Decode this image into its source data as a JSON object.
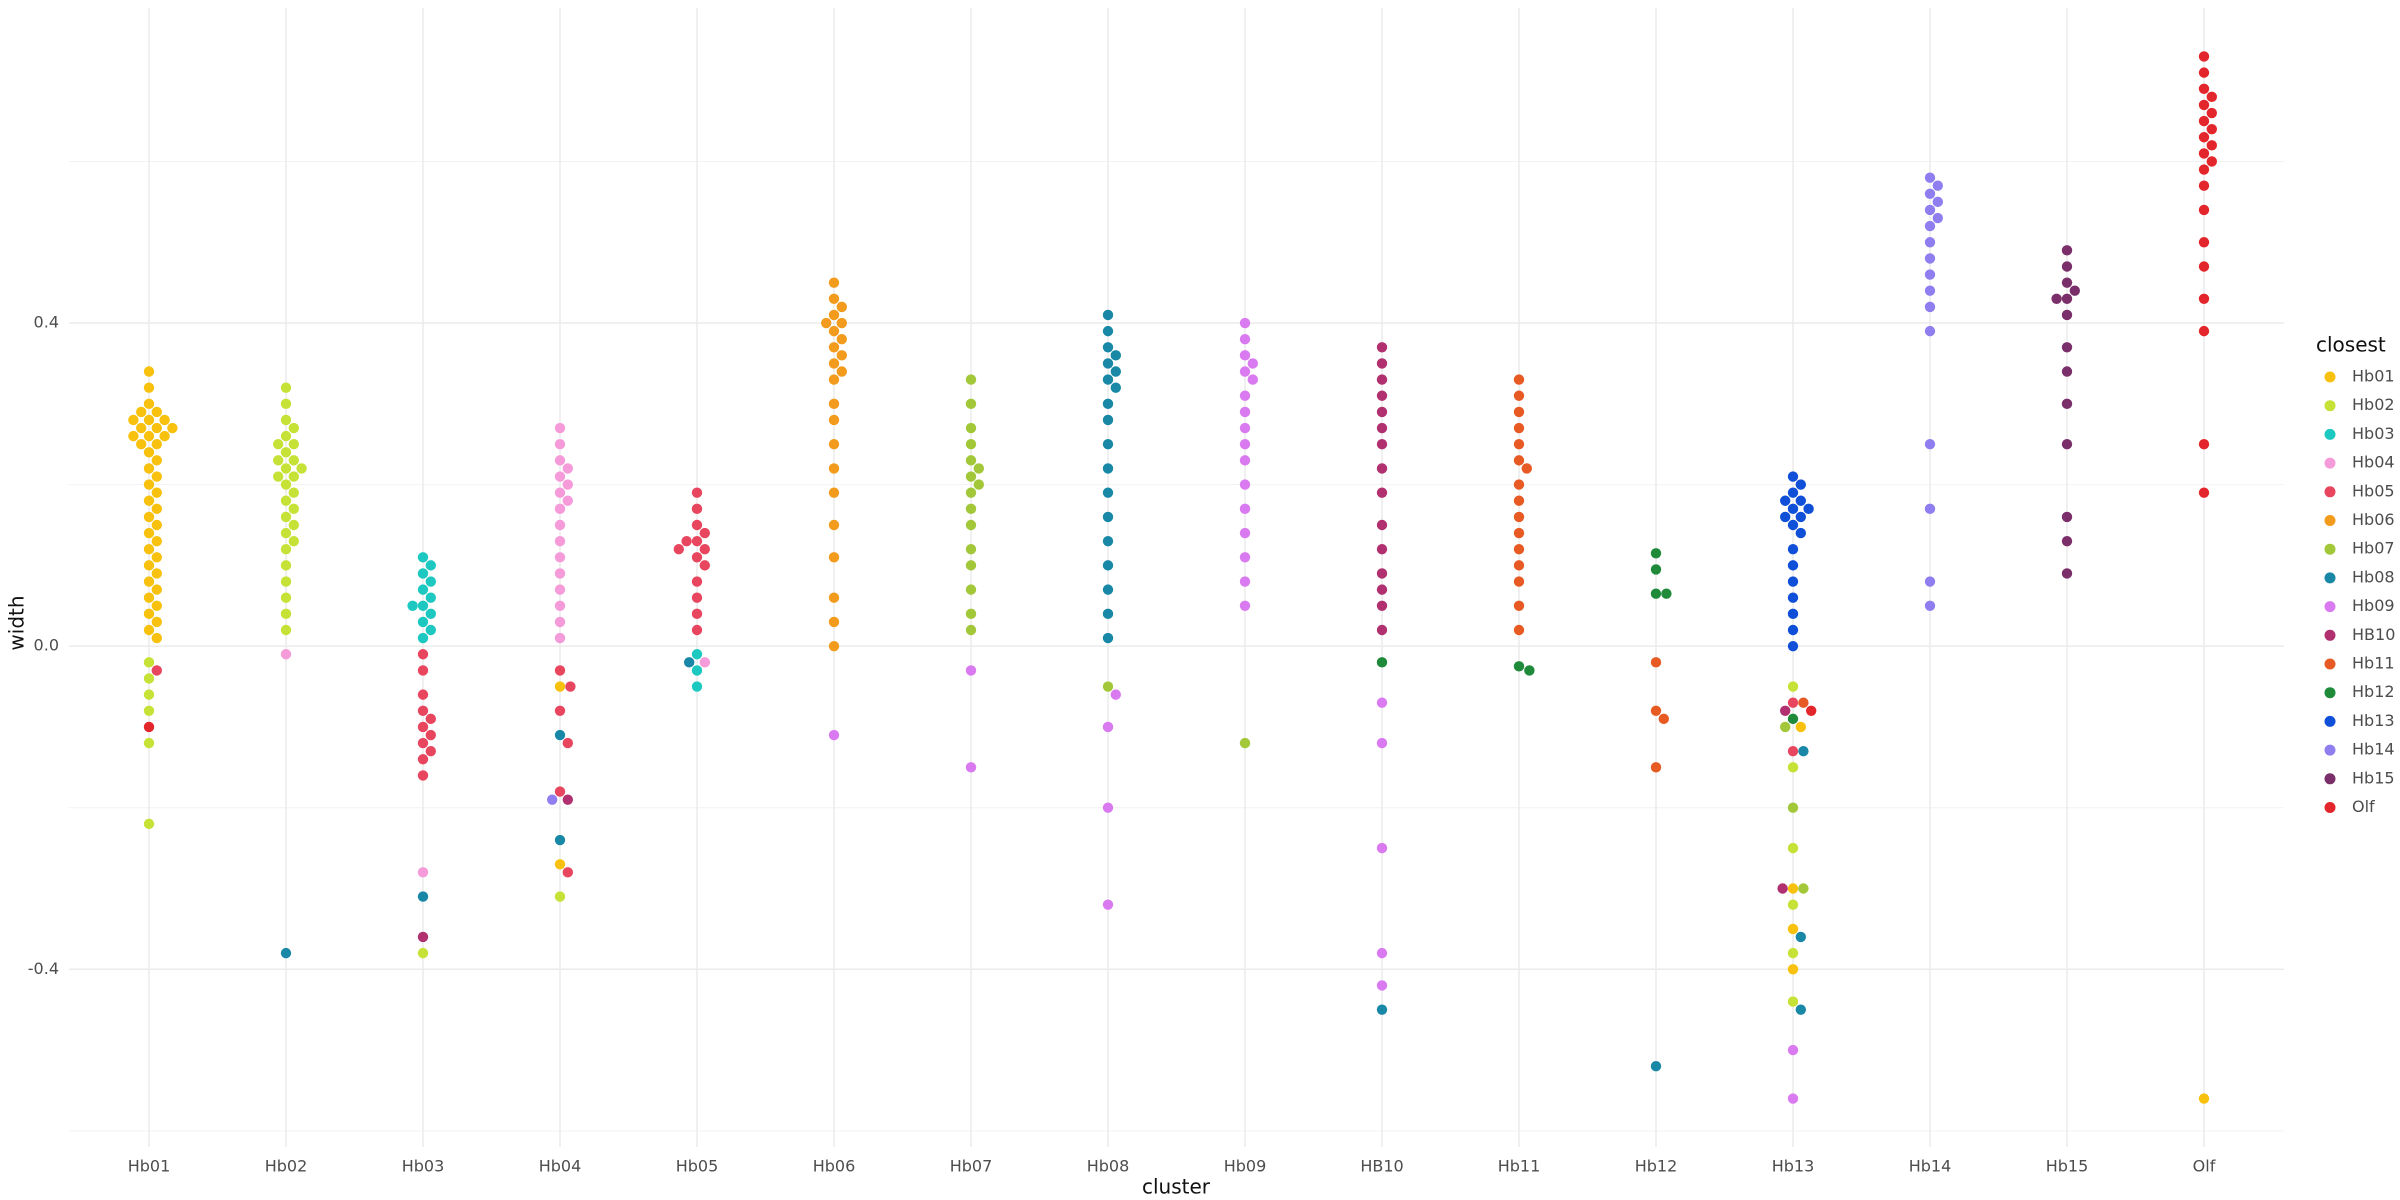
{
  "chart_data": {
    "type": "beeswarm",
    "x_label": "cluster",
    "y_label": "width",
    "legend_title": "closest",
    "categories": [
      "Hb01",
      "Hb02",
      "Hb03",
      "Hb04",
      "Hb05",
      "Hb06",
      "Hb07",
      "Hb08",
      "Hb09",
      "HB10",
      "Hb11",
      "Hb12",
      "Hb13",
      "Hb14",
      "Hb15",
      "Olf"
    ],
    "ylim": [
      -0.62,
      0.79
    ],
    "yticks": [
      {
        "value": -0.4,
        "label": "-0.4"
      },
      {
        "value": 0,
        "label": "0.0"
      },
      {
        "value": 0.4,
        "label": "0.4"
      }
    ],
    "y_minor_grid": [
      -0.6,
      -0.2,
      0.2,
      0.6
    ],
    "grid": true,
    "legend_position": "right",
    "series": [
      {
        "name": "Hb01",
        "color": "#F7C10E",
        "x": [
          "Hb01",
          "Hb01",
          "Hb01",
          "Hb01",
          "Hb01",
          "Hb01",
          "Hb01",
          "Hb01",
          "Hb01",
          "Hb01",
          "Hb01",
          "Hb01",
          "Hb01",
          "Hb01",
          "Hb01",
          "Hb01",
          "Hb01",
          "Hb01",
          "Hb01",
          "Hb01",
          "Hb01",
          "Hb01",
          "Hb01",
          "Hb01",
          "Hb01",
          "Hb01",
          "Hb01",
          "Hb01",
          "Hb01",
          "Hb01",
          "Hb01",
          "Hb01",
          "Hb01",
          "Hb01",
          "Hb01",
          "Hb01",
          "Hb01",
          "Hb01",
          "Hb01",
          "Hb01",
          "Hb13",
          "Hb13",
          "Hb13",
          "Hb13",
          "Hb04",
          "Hb04",
          "Olf"
        ],
        "values": [
          0.34,
          0.32,
          0.3,
          0.29,
          0.28,
          0.28,
          0.27,
          0.27,
          0.26,
          0.26,
          0.25,
          0.25,
          0.24,
          0.23,
          0.22,
          0.21,
          0.2,
          0.19,
          0.18,
          0.17,
          0.16,
          0.15,
          0.14,
          0.13,
          0.12,
          0.11,
          0.1,
          0.09,
          0.08,
          0.07,
          0.06,
          0.05,
          0.04,
          0.03,
          0.02,
          0.01,
          0.29,
          0.28,
          0.27,
          0.26,
          -0.1,
          -0.3,
          -0.35,
          -0.4,
          -0.05,
          -0.27,
          -0.56
        ]
      },
      {
        "name": "Hb02",
        "color": "#C6E236",
        "x": [
          "Hb02",
          "Hb02",
          "Hb02",
          "Hb02",
          "Hb02",
          "Hb02",
          "Hb02",
          "Hb02",
          "Hb02",
          "Hb02",
          "Hb02",
          "Hb02",
          "Hb02",
          "Hb02",
          "Hb02",
          "Hb02",
          "Hb02",
          "Hb02",
          "Hb02",
          "Hb02",
          "Hb02",
          "Hb02",
          "Hb02",
          "Hb02",
          "Hb02",
          "Hb02",
          "Hb02",
          "Hb02",
          "Hb01",
          "Hb01",
          "Hb01",
          "Hb01",
          "Hb01",
          "Hb01",
          "Hb03",
          "Hb04",
          "Hb13",
          "Hb13",
          "Hb13",
          "Hb13",
          "Hb13",
          "Hb13"
        ],
        "values": [
          0.32,
          0.3,
          0.28,
          0.27,
          0.26,
          0.25,
          0.24,
          0.23,
          0.22,
          0.21,
          0.2,
          0.19,
          0.18,
          0.17,
          0.16,
          0.15,
          0.14,
          0.13,
          0.12,
          0.1,
          0.08,
          0.06,
          0.04,
          0.02,
          0.25,
          0.23,
          0.22,
          0.21,
          -0.02,
          -0.04,
          -0.06,
          -0.08,
          -0.12,
          -0.22,
          -0.38,
          -0.31,
          -0.05,
          -0.15,
          -0.25,
          -0.32,
          -0.38,
          -0.44
        ]
      },
      {
        "name": "Hb03",
        "color": "#1CC8C0",
        "x": [
          "Hb03",
          "Hb03",
          "Hb03",
          "Hb03",
          "Hb03",
          "Hb03",
          "Hb03",
          "Hb03",
          "Hb03",
          "Hb03",
          "Hb03",
          "Hb03",
          "Hb05",
          "Hb05",
          "Hb05"
        ],
        "values": [
          0.11,
          0.1,
          0.09,
          0.08,
          0.07,
          0.06,
          0.05,
          0.05,
          0.04,
          0.03,
          0.02,
          0.01,
          -0.01,
          -0.03,
          -0.05
        ]
      },
      {
        "name": "Hb04",
        "color": "#F59BD9",
        "x": [
          "Hb04",
          "Hb04",
          "Hb04",
          "Hb04",
          "Hb04",
          "Hb04",
          "Hb04",
          "Hb04",
          "Hb04",
          "Hb04",
          "Hb04",
          "Hb04",
          "Hb04",
          "Hb04",
          "Hb04",
          "Hb04",
          "Hb04",
          "Hb02",
          "Hb03",
          "Hb05"
        ],
        "values": [
          0.27,
          0.25,
          0.23,
          0.22,
          0.21,
          0.2,
          0.19,
          0.18,
          0.17,
          0.15,
          0.13,
          0.11,
          0.09,
          0.07,
          0.05,
          0.03,
          0.01,
          -0.01,
          -0.28,
          -0.02
        ]
      },
      {
        "name": "Hb05",
        "color": "#E8465E",
        "x": [
          "Hb05",
          "Hb05",
          "Hb05",
          "Hb05",
          "Hb05",
          "Hb05",
          "Hb05",
          "Hb05",
          "Hb05",
          "Hb05",
          "Hb05",
          "Hb05",
          "Hb05",
          "Hb05",
          "Hb03",
          "Hb03",
          "Hb03",
          "Hb03",
          "Hb03",
          "Hb03",
          "Hb03",
          "Hb03",
          "Hb03",
          "Hb03",
          "Hb03",
          "Hb04",
          "Hb04",
          "Hb04",
          "Hb04",
          "Hb04",
          "Hb04",
          "Hb01",
          "Hb13",
          "Hb13"
        ],
        "values": [
          0.19,
          0.17,
          0.15,
          0.14,
          0.13,
          0.13,
          0.12,
          0.12,
          0.11,
          0.1,
          0.08,
          0.06,
          0.04,
          0.02,
          -0.01,
          -0.03,
          -0.06,
          -0.08,
          -0.09,
          -0.1,
          -0.11,
          -0.12,
          -0.13,
          -0.14,
          -0.16,
          -0.03,
          -0.05,
          -0.08,
          -0.12,
          -0.18,
          -0.28,
          -0.03,
          -0.07,
          -0.13
        ]
      },
      {
        "name": "Hb06",
        "color": "#F29B1C",
        "x": [
          "Hb06",
          "Hb06",
          "Hb06",
          "Hb06",
          "Hb06",
          "Hb06",
          "Hb06",
          "Hb06",
          "Hb06",
          "Hb06",
          "Hb06",
          "Hb06",
          "Hb06",
          "Hb06",
          "Hb06",
          "Hb06",
          "Hb06",
          "Hb06",
          "Hb06",
          "Hb06",
          "Hb06",
          "Hb06",
          "Hb06"
        ],
        "values": [
          0.45,
          0.43,
          0.42,
          0.41,
          0.4,
          0.4,
          0.39,
          0.38,
          0.37,
          0.36,
          0.35,
          0.34,
          0.33,
          0.3,
          0.28,
          0.25,
          0.22,
          0.19,
          0.15,
          0.11,
          0.06,
          0.03,
          0
        ]
      },
      {
        "name": "Hb07",
        "color": "#A2C83A",
        "x": [
          "Hb07",
          "Hb07",
          "Hb07",
          "Hb07",
          "Hb07",
          "Hb07",
          "Hb07",
          "Hb07",
          "Hb07",
          "Hb07",
          "Hb07",
          "Hb07",
          "Hb07",
          "Hb07",
          "Hb07",
          "Hb07",
          "Hb08",
          "Hb09",
          "Hb13",
          "Hb13",
          "Hb13"
        ],
        "values": [
          0.33,
          0.3,
          0.27,
          0.25,
          0.23,
          0.22,
          0.21,
          0.2,
          0.19,
          0.17,
          0.15,
          0.12,
          0.1,
          0.07,
          0.04,
          0.02,
          -0.05,
          -0.12,
          -0.1,
          -0.2,
          -0.3
        ]
      },
      {
        "name": "Hb08",
        "color": "#1888A6",
        "x": [
          "Hb08",
          "Hb08",
          "Hb08",
          "Hb08",
          "Hb08",
          "Hb08",
          "Hb08",
          "Hb08",
          "Hb08",
          "Hb08",
          "Hb08",
          "Hb08",
          "Hb08",
          "Hb08",
          "Hb08",
          "Hb08",
          "Hb08",
          "Hb08",
          "Hb08",
          "Hb02",
          "Hb03",
          "Hb04",
          "Hb04",
          "Hb05",
          "Hb12",
          "Hb13",
          "Hb13",
          "Hb13",
          "HB10"
        ],
        "values": [
          0.41,
          0.39,
          0.37,
          0.36,
          0.35,
          0.34,
          0.33,
          0.32,
          0.3,
          0.28,
          0.25,
          0.22,
          0.19,
          0.16,
          0.13,
          0.1,
          0.07,
          0.04,
          0.01,
          -0.38,
          -0.31,
          -0.11,
          -0.24,
          -0.02,
          -0.52,
          -0.13,
          -0.36,
          -0.45,
          -0.45
        ]
      },
      {
        "name": "Hb09",
        "color": "#DA7AF0",
        "x": [
          "Hb09",
          "Hb09",
          "Hb09",
          "Hb09",
          "Hb09",
          "Hb09",
          "Hb09",
          "Hb09",
          "Hb09",
          "Hb09",
          "Hb09",
          "Hb09",
          "Hb09",
          "Hb09",
          "Hb09",
          "Hb09",
          "Hb09",
          "Hb06",
          "Hb07",
          "Hb07",
          "Hb08",
          "Hb08",
          "Hb08",
          "Hb08",
          "HB10",
          "HB10",
          "HB10",
          "HB10",
          "HB10",
          "Hb13",
          "Hb13"
        ],
        "values": [
          0.4,
          0.38,
          0.36,
          0.35,
          0.34,
          0.33,
          0.31,
          0.29,
          0.27,
          0.25,
          0.23,
          0.2,
          0.17,
          0.14,
          0.11,
          0.08,
          0.05,
          -0.11,
          -0.03,
          -0.15,
          -0.06,
          -0.1,
          -0.2,
          -0.32,
          -0.07,
          -0.12,
          -0.25,
          -0.38,
          -0.42,
          -0.5,
          -0.56
        ]
      },
      {
        "name": "HB10",
        "color": "#B03070",
        "x": [
          "HB10",
          "HB10",
          "HB10",
          "HB10",
          "HB10",
          "HB10",
          "HB10",
          "HB10",
          "HB10",
          "HB10",
          "HB10",
          "HB10",
          "HB10",
          "HB10",
          "HB10",
          "Hb03",
          "Hb04",
          "Hb13",
          "Hb13"
        ],
        "values": [
          0.37,
          0.35,
          0.33,
          0.31,
          0.29,
          0.27,
          0.25,
          0.22,
          0.19,
          0.15,
          0.12,
          0.09,
          0.07,
          0.05,
          0.02,
          -0.36,
          -0.19,
          -0.08,
          -0.3
        ]
      },
      {
        "name": "Hb11",
        "color": "#E85A24",
        "x": [
          "Hb11",
          "Hb11",
          "Hb11",
          "Hb11",
          "Hb11",
          "Hb11",
          "Hb11",
          "Hb11",
          "Hb11",
          "Hb11",
          "Hb11",
          "Hb11",
          "Hb11",
          "Hb11",
          "Hb11",
          "Hb11",
          "Hb12",
          "Hb12",
          "Hb12",
          "Hb12",
          "Hb13"
        ],
        "values": [
          0.33,
          0.31,
          0.29,
          0.27,
          0.25,
          0.23,
          0.22,
          0.2,
          0.18,
          0.16,
          0.14,
          0.12,
          0.1,
          0.08,
          0.05,
          0.02,
          -0.02,
          -0.09,
          -0.15,
          -0.08,
          -0.07
        ]
      },
      {
        "name": "Hb12",
        "color": "#1E8A3A",
        "x": [
          "Hb12",
          "Hb12",
          "Hb12",
          "Hb12",
          "Hb11",
          "Hb11",
          "HB10",
          "Hb13"
        ],
        "values": [
          0.115,
          0.065,
          0.065,
          0.095,
          -0.025,
          -0.03,
          -0.02,
          -0.09
        ]
      },
      {
        "name": "Hb13",
        "color": "#1050D8",
        "x": [
          "Hb13",
          "Hb13",
          "Hb13",
          "Hb13",
          "Hb13",
          "Hb13",
          "Hb13",
          "Hb13",
          "Hb13",
          "Hb13",
          "Hb13",
          "Hb13",
          "Hb13",
          "Hb13",
          "Hb13",
          "Hb13",
          "Hb13",
          "Hb13"
        ],
        "values": [
          0.21,
          0.2,
          0.19,
          0.18,
          0.17,
          0.16,
          0.16,
          0.15,
          0.14,
          0.12,
          0.1,
          0.08,
          0.06,
          0.04,
          0.02,
          0,
          0.18,
          0.17
        ]
      },
      {
        "name": "Hb14",
        "color": "#8E7EF0",
        "x": [
          "Hb14",
          "Hb14",
          "Hb14",
          "Hb14",
          "Hb14",
          "Hb14",
          "Hb14",
          "Hb14",
          "Hb14",
          "Hb14",
          "Hb14",
          "Hb14",
          "Hb14",
          "Hb14",
          "Hb14",
          "Hb14",
          "Hb14",
          "Hb04"
        ],
        "values": [
          0.58,
          0.56,
          0.54,
          0.52,
          0.5,
          0.48,
          0.46,
          0.44,
          0.42,
          0.39,
          0.25,
          0.17,
          0.08,
          0.05,
          0.53,
          0.55,
          0.57,
          -0.19
        ]
      },
      {
        "name": "Hb15",
        "color": "#7A2E6A",
        "x": [
          "Hb15",
          "Hb15",
          "Hb15",
          "Hb15",
          "Hb15",
          "Hb15",
          "Hb15",
          "Hb15",
          "Hb15",
          "Hb15",
          "Hb15",
          "Hb15",
          "Hb15",
          "Hb15"
        ],
        "values": [
          0.49,
          0.47,
          0.45,
          0.44,
          0.43,
          0.43,
          0.41,
          0.37,
          0.34,
          0.3,
          0.25,
          0.16,
          0.13,
          0.09
        ]
      },
      {
        "name": "Olf",
        "color": "#E3262B",
        "x": [
          "Olf",
          "Olf",
          "Olf",
          "Olf",
          "Olf",
          "Olf",
          "Olf",
          "Olf",
          "Olf",
          "Olf",
          "Olf",
          "Olf",
          "Olf",
          "Olf",
          "Olf",
          "Olf",
          "Olf",
          "Olf",
          "Olf",
          "Olf",
          "Olf",
          "Hb01",
          "Hb13"
        ],
        "values": [
          0.73,
          0.71,
          0.69,
          0.68,
          0.67,
          0.66,
          0.65,
          0.64,
          0.63,
          0.62,
          0.61,
          0.6,
          0.59,
          0.57,
          0.54,
          0.5,
          0.47,
          0.43,
          0.39,
          0.25,
          0.19,
          -0.1,
          -0.08
        ]
      }
    ]
  }
}
